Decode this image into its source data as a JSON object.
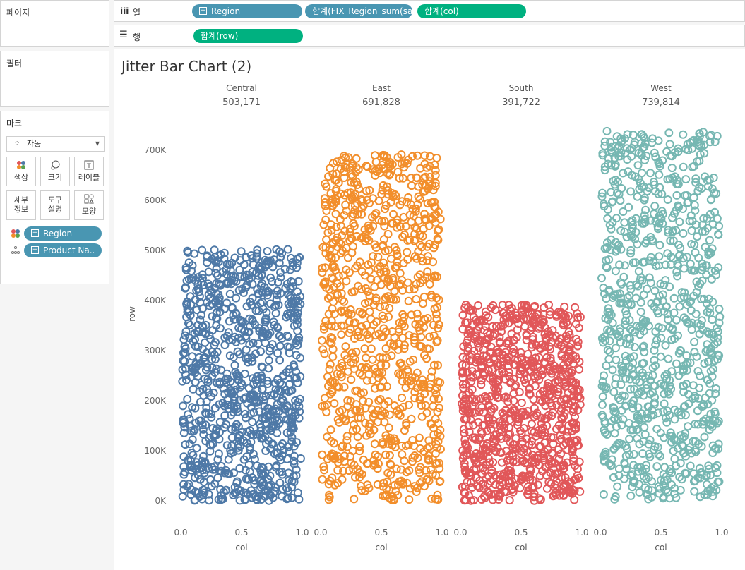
{
  "pages": {
    "label": "페이지"
  },
  "filters": {
    "label": "필터"
  },
  "marks": {
    "label": "마크",
    "type": "자동",
    "buttons": [
      {
        "icon": "color-icon",
        "label": "색상"
      },
      {
        "icon": "size-icon",
        "label": "크기"
      },
      {
        "icon": "label-icon",
        "label": "레이블"
      },
      {
        "icon": "detail-icon",
        "label": "세부\n정보"
      },
      {
        "icon": "tooltip-icon",
        "label": "도구\n설명"
      },
      {
        "icon": "shape-icon",
        "label": "모양"
      }
    ],
    "pills": [
      {
        "icon": "color-icon",
        "label": "Region"
      },
      {
        "icon": "detail-icon",
        "label": "Product Na.."
      }
    ]
  },
  "columns_shelf": {
    "label": "열",
    "pills": [
      "Region",
      "합계(FIX_Region_sum(sa..",
      "합계(col)"
    ]
  },
  "rows_shelf": {
    "label": "행",
    "pills": [
      "합계(row)"
    ]
  },
  "chart_title": "Jitter Bar Chart (2)",
  "chart_data": {
    "type": "scatter",
    "title": "Jitter Bar Chart (2)",
    "ylabel": "row",
    "xlabel": "col",
    "ylim": [
      0,
      750000
    ],
    "xlim": [
      0,
      1
    ],
    "y_ticks": [
      "0K",
      "100K",
      "200K",
      "300K",
      "400K",
      "500K",
      "600K",
      "700K"
    ],
    "x_ticks": [
      "0.0",
      "0.5",
      "1.0"
    ],
    "panels": [
      {
        "region": "Central",
        "total": "503,171",
        "max": 503171,
        "color": "#4e79a7"
      },
      {
        "region": "East",
        "total": "691,828",
        "max": 691828,
        "color": "#f28e2b"
      },
      {
        "region": "South",
        "total": "391,722",
        "max": 391722,
        "color": "#e15759"
      },
      {
        "region": "West",
        "total": "739,814",
        "max": 739814,
        "color": "#76b7b2"
      }
    ],
    "grid": false
  }
}
